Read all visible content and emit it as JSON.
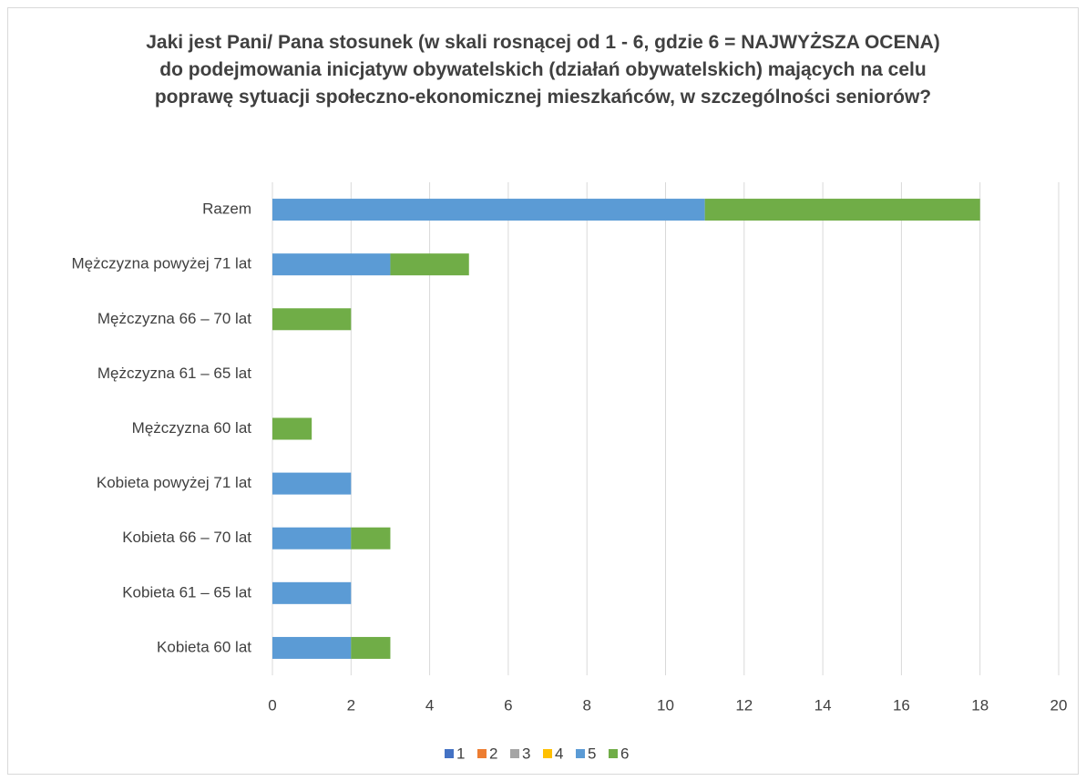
{
  "chart_data": {
    "type": "stacked_barh",
    "title": "Jaki jest Pani/ Pana stosunek (w skali rosnącej od 1 - 6, gdzie 6 = NAJWYŻSZA OCENA) do podejmowania inicjatyw obywatelskich (działań obywatelskich) mających na celu poprawę sytuacji społeczno-ekonomicznej mieszkańców, w szczególności seniorów?",
    "categories": [
      "Razem",
      "Mężczyzna powyżej 71 lat",
      "Mężczyzna 66 – 70 lat",
      "Mężczyzna 61 – 65 lat",
      "Mężczyzna 60 lat",
      "Kobieta powyżej 71 lat",
      "Kobieta 66 – 70 lat",
      "Kobieta 61 – 65 lat",
      "Kobieta 60 lat"
    ],
    "series": [
      {
        "name": "1",
        "color": "#4472c4",
        "values": [
          0,
          0,
          0,
          0,
          0,
          0,
          0,
          0,
          0
        ]
      },
      {
        "name": "2",
        "color": "#ed7d31",
        "values": [
          0,
          0,
          0,
          0,
          0,
          0,
          0,
          0,
          0
        ]
      },
      {
        "name": "3",
        "color": "#a5a5a5",
        "values": [
          0,
          0,
          0,
          0,
          0,
          0,
          0,
          0,
          0
        ]
      },
      {
        "name": "4",
        "color": "#ffc000",
        "values": [
          0,
          0,
          0,
          0,
          0,
          0,
          0,
          0,
          0
        ]
      },
      {
        "name": "5",
        "color": "#5b9bd5",
        "values": [
          11,
          3,
          0,
          0,
          0,
          2,
          2,
          2,
          2
        ]
      },
      {
        "name": "6",
        "color": "#70ad47",
        "values": [
          7,
          2,
          2,
          0,
          1,
          0,
          1,
          0,
          1
        ]
      }
    ],
    "xlim": [
      0,
      20
    ],
    "xticks": [
      0,
      2,
      4,
      6,
      8,
      10,
      12,
      14,
      16,
      18,
      20
    ],
    "grid": true,
    "legend": "bottom"
  }
}
